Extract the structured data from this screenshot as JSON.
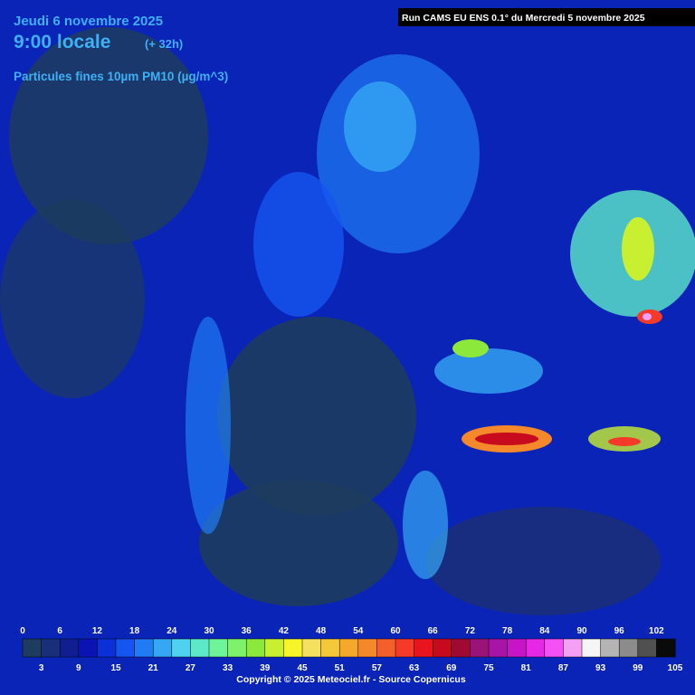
{
  "header": {
    "date": "Jeudi 6 novembre 2025",
    "time": "9:00 locale",
    "lead": "(+ 32h)",
    "variable": "Particules fines 10µm PM10 (µg/m^3)",
    "run": "Run CAMS EU ENS 0.1° du Mercredi 5 novembre 2025"
  },
  "legend": {
    "range": [
      0,
      105
    ],
    "top_labels": [
      0,
      6,
      12,
      18,
      24,
      30,
      36,
      42,
      48,
      54,
      60,
      66,
      72,
      78,
      84,
      90,
      96,
      102
    ],
    "bottom_labels": [
      3,
      9,
      15,
      21,
      27,
      33,
      39,
      45,
      51,
      57,
      63,
      69,
      75,
      81,
      87,
      93,
      99,
      105
    ],
    "colors": [
      "#1d3c5e",
      "#1a2f7a",
      "#101e8f",
      "#0a14b4",
      "#0d2fd8",
      "#1555f0",
      "#1f7cf5",
      "#35a8f5",
      "#4fd2f0",
      "#5de8c8",
      "#6ef59a",
      "#7df26a",
      "#8ce83a",
      "#c8f030",
      "#f5f52a",
      "#f5e060",
      "#f5c83a",
      "#f5a82a",
      "#f5882a",
      "#f5602a",
      "#f53a2a",
      "#e8141e",
      "#c80a1e",
      "#a00a32",
      "#9a1478",
      "#a814a8",
      "#c814c8",
      "#e628e6",
      "#f550f5",
      "#f5a0f5",
      "#f5f5f5",
      "#b4b4b4",
      "#8c8c8c",
      "#505050",
      "#0a0a0a"
    ]
  },
  "footer": {
    "copyright": "Copyright © 2025 Meteociel.fr - Source Copernicus"
  }
}
